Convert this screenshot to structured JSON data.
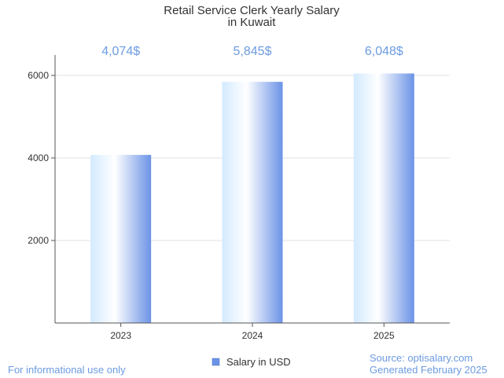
{
  "chart_data": {
    "type": "bar",
    "title": "Retail Service Clerk Yearly Salary",
    "subtitle": "in Kuwait",
    "categories": [
      "2023",
      "2024",
      "2025"
    ],
    "series": [
      {
        "name": "Salary in USD",
        "values": [
          4074,
          5845,
          6048
        ]
      }
    ],
    "data_labels": [
      "4,074$",
      "5,845$",
      "6,048$"
    ],
    "y_ticks": [
      2000,
      4000,
      6000
    ],
    "y_tick_labels": [
      "2000",
      "4000",
      "6000"
    ],
    "ylim": [
      0,
      6500
    ],
    "grid": true,
    "legend_position": "bottom",
    "colors": {
      "bar_light": "#d6ecff",
      "bar_dark": "#6b93e6",
      "label": "#6c9be0",
      "grid": "#e0e0e0",
      "axis": "#555555",
      "footer": "#6c9be0"
    }
  },
  "footer": {
    "left_note": "For informational use only",
    "source": "Source: optisalary.com",
    "generated": "Generated February 2025"
  }
}
